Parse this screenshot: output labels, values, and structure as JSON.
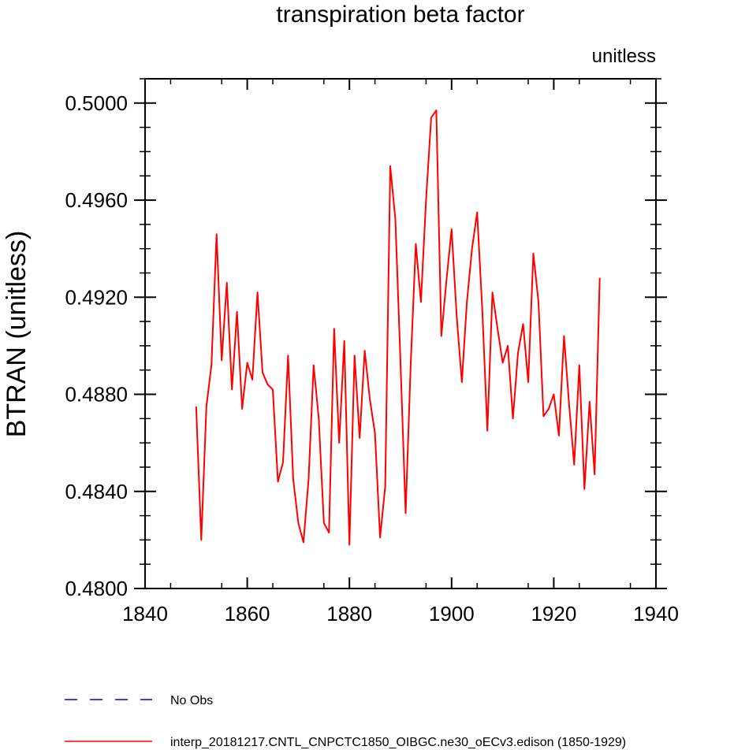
{
  "chart_data": {
    "type": "line",
    "title": "transpiration beta factor",
    "units_label": "unitless",
    "ylabel": "BTRAN  (unitless)",
    "xlabel": "",
    "xlim": [
      1840,
      1940
    ],
    "ylim": [
      0.48,
      0.501
    ],
    "x_ticks": [
      1840,
      1860,
      1880,
      1900,
      1920,
      1940
    ],
    "x_tick_labels": [
      "1840",
      "1860",
      "1880",
      "1900",
      "1920",
      "1940"
    ],
    "y_ticks": [
      0.48,
      0.484,
      0.488,
      0.492,
      0.496,
      0.5
    ],
    "y_tick_labels": [
      "0.4800",
      "0.4840",
      "0.4880",
      "0.4920",
      "0.4960",
      "0.5000"
    ],
    "series": [
      {
        "name": "interp_20181217.CNTL_CNPCTC1850_OIBGC.ne30_oECv3.edison (1850-1929)",
        "color": "#ff0000",
        "dash": "solid",
        "x": [
          1850,
          1851,
          1852,
          1853,
          1854,
          1855,
          1856,
          1857,
          1858,
          1859,
          1860,
          1861,
          1862,
          1863,
          1864,
          1865,
          1866,
          1867,
          1868,
          1869,
          1870,
          1871,
          1872,
          1873,
          1874,
          1875,
          1876,
          1877,
          1878,
          1879,
          1880,
          1881,
          1882,
          1883,
          1884,
          1885,
          1886,
          1887,
          1888,
          1889,
          1890,
          1891,
          1892,
          1893,
          1894,
          1895,
          1896,
          1897,
          1898,
          1899,
          1900,
          1901,
          1902,
          1903,
          1904,
          1905,
          1906,
          1907,
          1908,
          1909,
          1910,
          1911,
          1912,
          1913,
          1914,
          1915,
          1916,
          1917,
          1918,
          1919,
          1920,
          1921,
          1922,
          1923,
          1924,
          1925,
          1926,
          1927,
          1928,
          1929
        ],
        "values": [
          0.4875,
          0.482,
          0.4875,
          0.4892,
          0.4946,
          0.4894,
          0.4926,
          0.4882,
          0.4914,
          0.4874,
          0.4893,
          0.4886,
          0.4922,
          0.4889,
          0.4884,
          0.4882,
          0.4844,
          0.4852,
          0.4896,
          0.4845,
          0.4827,
          0.4819,
          0.4845,
          0.4892,
          0.487,
          0.4827,
          0.4823,
          0.4907,
          0.486,
          0.4902,
          0.4818,
          0.4896,
          0.4862,
          0.4898,
          0.4878,
          0.4864,
          0.4821,
          0.4842,
          0.4974,
          0.4952,
          0.4893,
          0.4831,
          0.4893,
          0.4942,
          0.4918,
          0.496,
          0.4994,
          0.4997,
          0.4904,
          0.4927,
          0.4948,
          0.4912,
          0.4885,
          0.4918,
          0.494,
          0.4955,
          0.4915,
          0.4865,
          0.4922,
          0.4907,
          0.4893,
          0.49,
          0.487,
          0.4897,
          0.4909,
          0.4885,
          0.4938,
          0.4918,
          0.4871,
          0.4874,
          0.488,
          0.4863,
          0.4904,
          0.4876,
          0.4851,
          0.4892,
          0.4841,
          0.4877,
          0.4847,
          0.4928
        ]
      }
    ],
    "legend": [
      {
        "label": "No Obs",
        "color": "#0000cc",
        "dash": "dashed"
      },
      {
        "label": "interp_20181217.CNTL_CNPCTC1850_OIBGC.ne30_oECv3.edison (1850-1929)",
        "color": "#ff0000",
        "dash": "solid"
      }
    ]
  }
}
